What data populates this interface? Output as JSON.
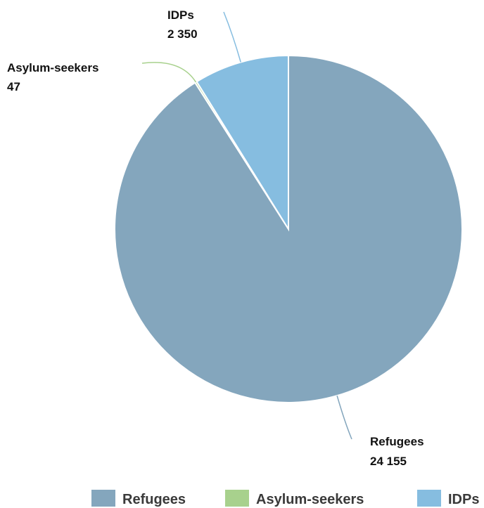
{
  "chart_data": {
    "type": "pie",
    "start_angle_deg": 0,
    "direction": "clockwise",
    "categories": [
      "Refugees",
      "Asylum-seekers",
      "IDPs"
    ],
    "values": [
      24155,
      47,
      2350
    ],
    "value_labels": [
      "24 155",
      "47",
      "2 350"
    ],
    "colors": [
      "#84a6bd",
      "#a8d18d",
      "#86bde0"
    ],
    "legend": {
      "position": "bottom-right",
      "entries": [
        "Refugees",
        "Asylum-seekers",
        "IDPs"
      ]
    }
  }
}
